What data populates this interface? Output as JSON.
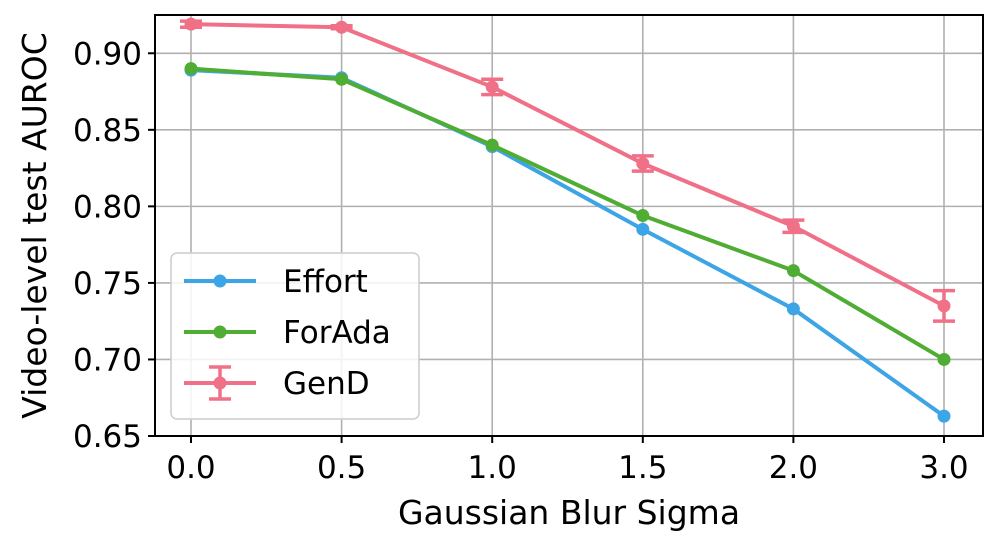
{
  "chart_data": {
    "type": "line",
    "xlabel": "Gaussian Blur Sigma",
    "ylabel": "Video-level test AUROC",
    "categories": [
      "0.0",
      "0.5",
      "1.0",
      "1.5",
      "2.0",
      "3.0"
    ],
    "yticks": [
      "0.65",
      "0.70",
      "0.75",
      "0.80",
      "0.85",
      "0.90"
    ],
    "ylim": [
      0.65,
      0.925
    ],
    "grid": true,
    "legend_position": "lower-left",
    "series": [
      {
        "name": "Effort",
        "color": "#3da5e6",
        "values": [
          0.889,
          0.884,
          0.839,
          0.785,
          0.733,
          0.663
        ],
        "errors": null
      },
      {
        "name": "ForAda",
        "color": "#4fad33",
        "values": [
          0.89,
          0.883,
          0.84,
          0.794,
          0.758,
          0.7
        ],
        "errors": null
      },
      {
        "name": "GenD",
        "color": "#f07088",
        "values": [
          0.919,
          0.917,
          0.878,
          0.828,
          0.787,
          0.735
        ],
        "errors": [
          0.002,
          0.001,
          0.005,
          0.005,
          0.004,
          0.01
        ]
      }
    ]
  }
}
